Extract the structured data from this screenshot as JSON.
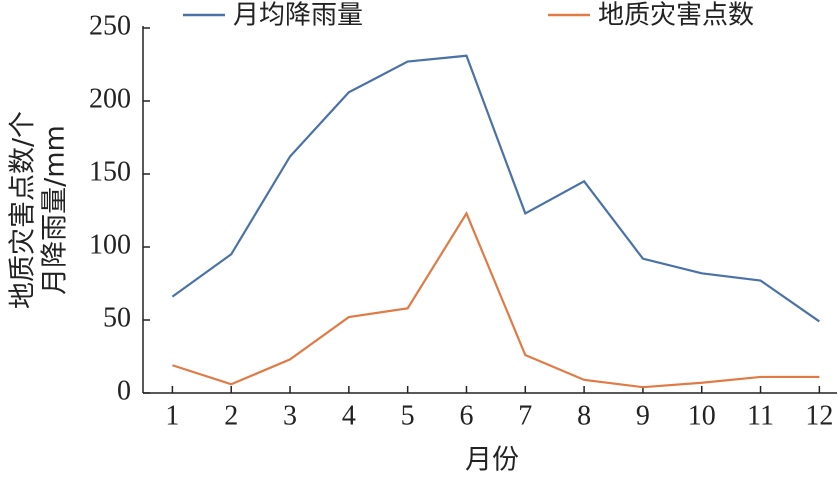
{
  "chart_data": {
    "type": "line",
    "x_label": "月份",
    "y_label": [
      "地质灾害点数/个",
      "月降雨量/mm"
    ],
    "x": [
      1,
      2,
      3,
      4,
      5,
      6,
      7,
      8,
      9,
      10,
      11,
      12
    ],
    "series": [
      {
        "name": "月均降雨量",
        "color": "#4a72a8",
        "values": [
          66,
          95,
          162,
          206,
          227,
          231,
          123,
          145,
          92,
          82,
          77,
          49
        ]
      },
      {
        "name": "地质灾害点数",
        "color": "#e07b45",
        "values": [
          19,
          6,
          23,
          52,
          58,
          123,
          26,
          9,
          4,
          7,
          11,
          11
        ]
      }
    ],
    "xlim": [
      0.5,
      12.3
    ],
    "xticks": [
      1,
      2,
      3,
      4,
      5,
      6,
      7,
      8,
      9,
      10,
      11,
      12
    ],
    "ylim": [
      0,
      250
    ],
    "yticks": [
      0,
      50,
      100,
      150,
      200,
      250
    ]
  }
}
